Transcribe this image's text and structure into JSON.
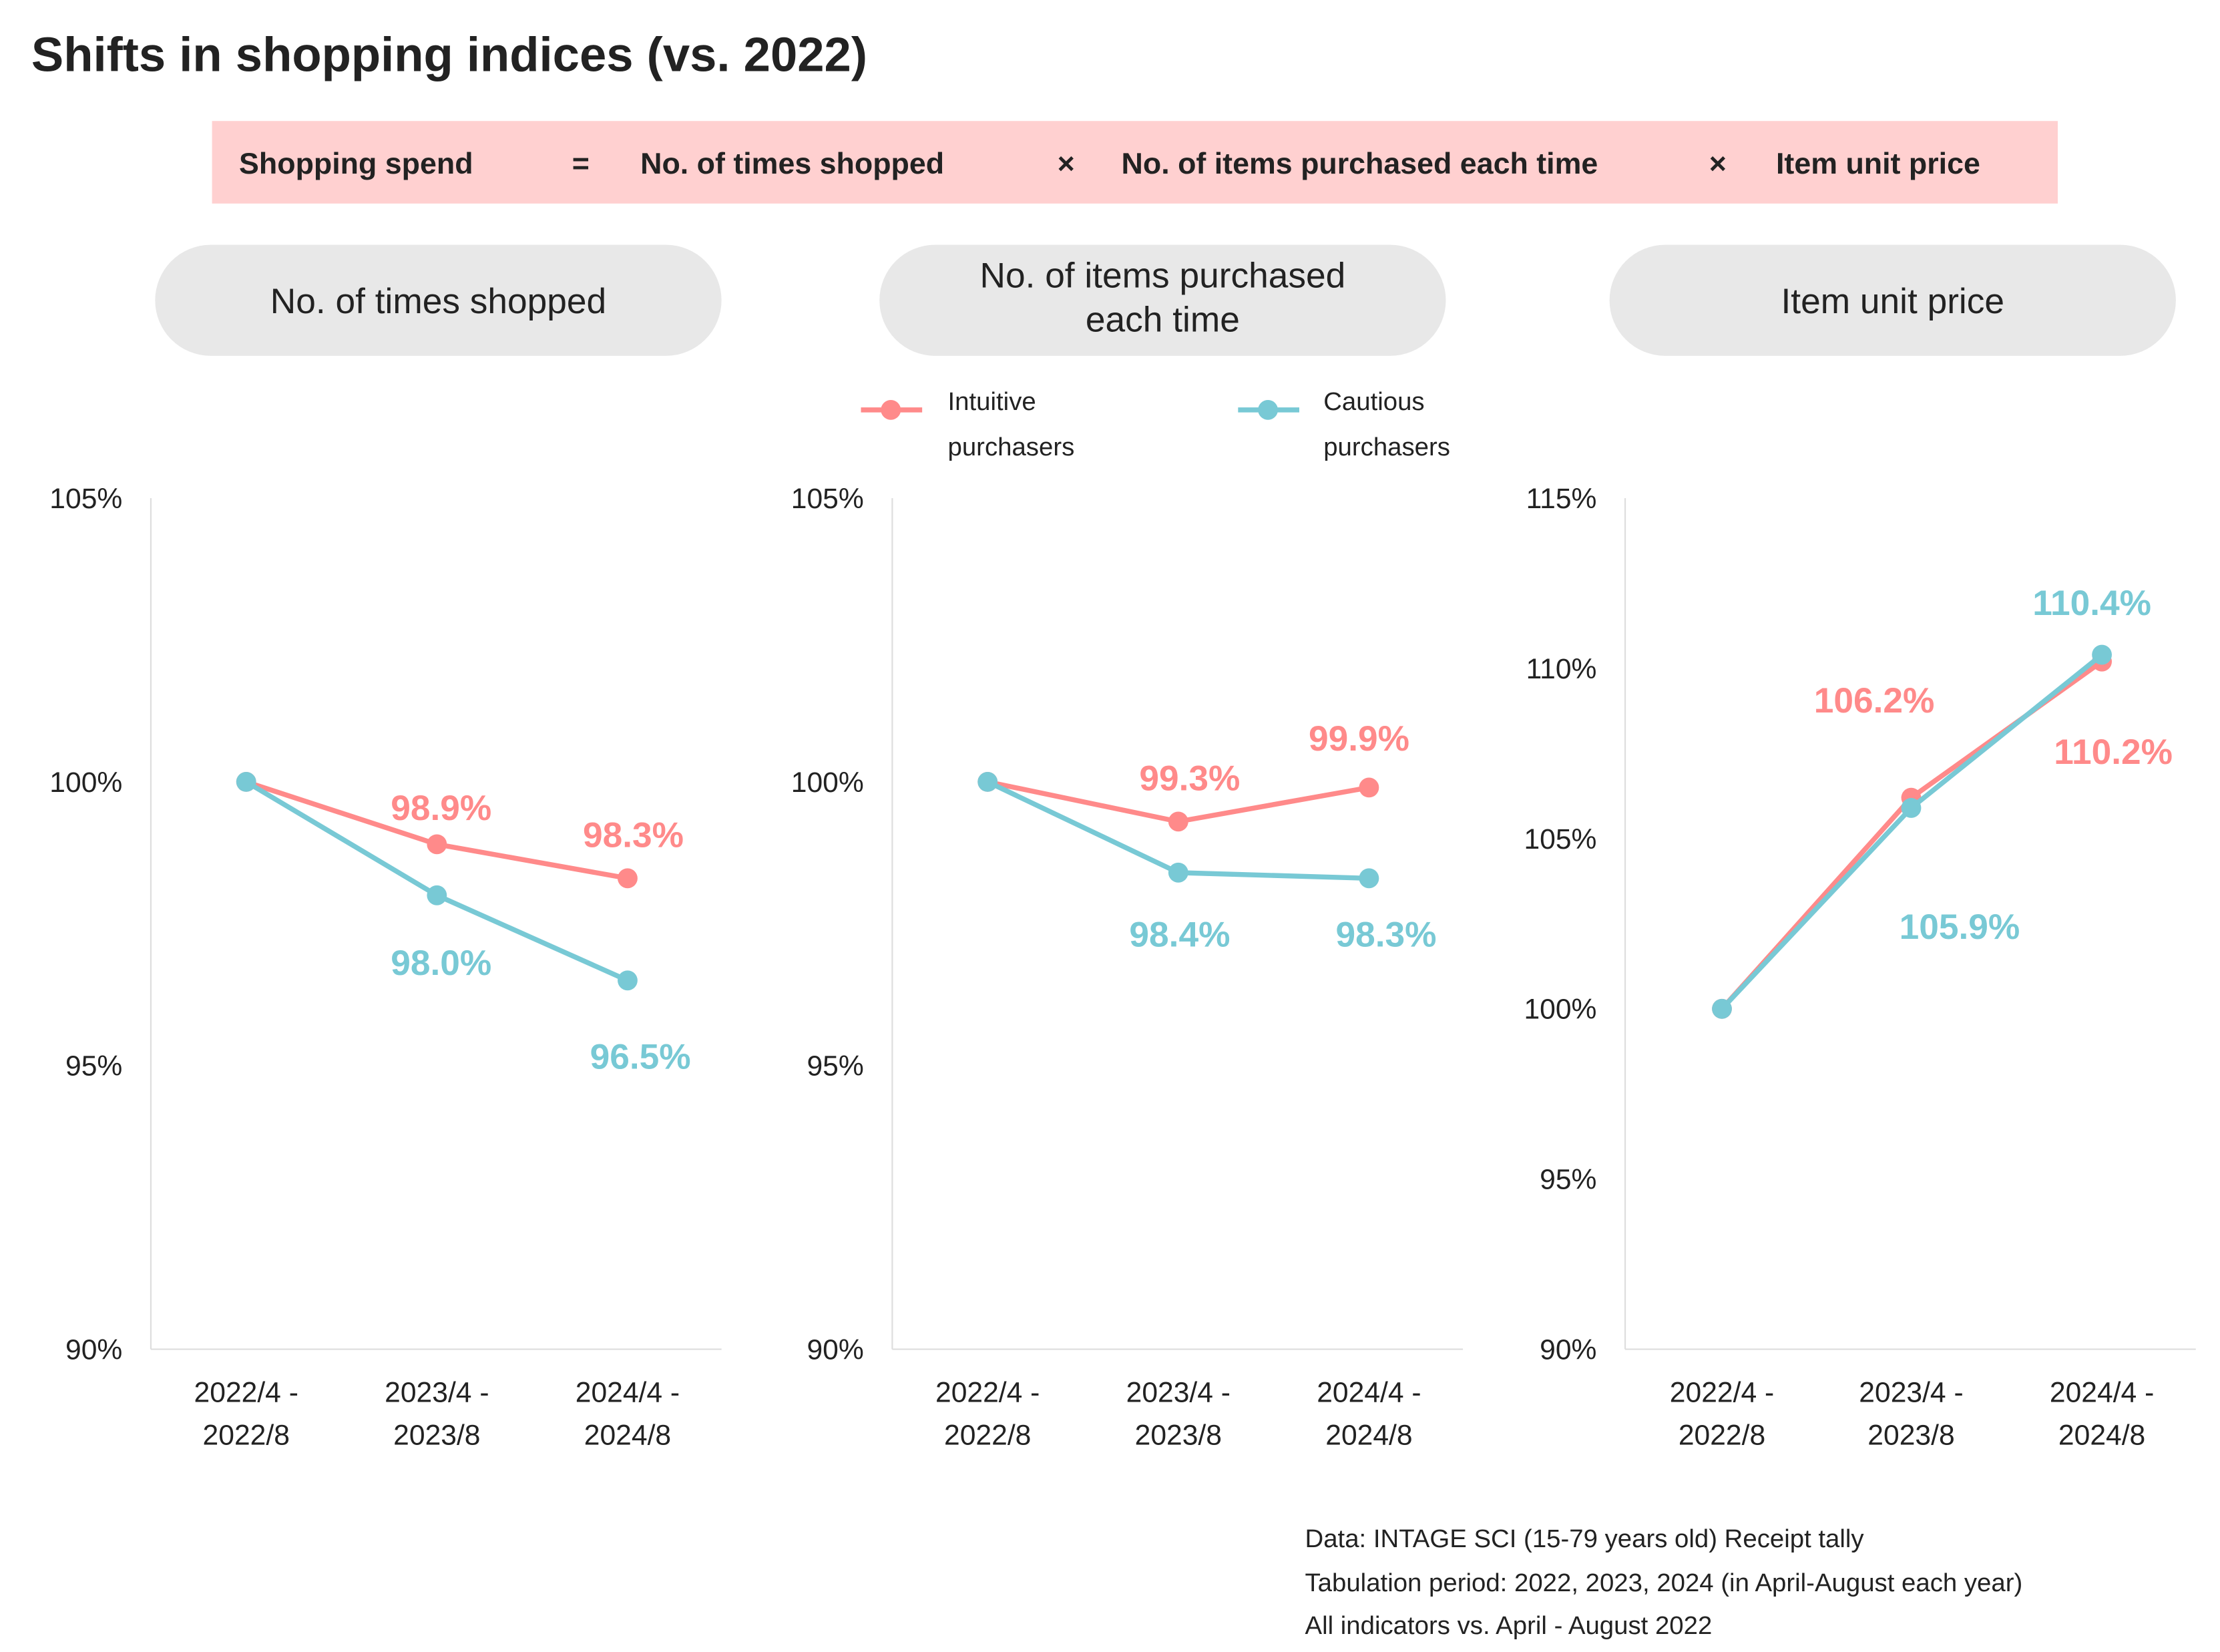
{
  "title": "Shifts in shopping indices (vs. 2022)",
  "formula": {
    "background": "#ffd0d0",
    "terms": [
      "Shopping spend",
      "=",
      "No. of times shopped",
      "×",
      "No. of items purchased each time",
      "×",
      "Item unit price"
    ]
  },
  "legend": [
    {
      "lines": [
        "Intuitive",
        "purchasers"
      ],
      "color": "#ff8a8a"
    },
    {
      "lines": [
        "Cautious",
        "purchasers"
      ],
      "color": "#78c9d5"
    }
  ],
  "chart_data": [
    {
      "type": "line",
      "title_lines": [
        "No. of times shopped"
      ],
      "categories": [
        [
          "2022/4 -",
          "2022/8"
        ],
        [
          "2023/4 -",
          "2023/8"
        ],
        [
          "2024/4 -",
          "2024/8"
        ]
      ],
      "ylim": [
        90,
        105
      ],
      "yticks": [
        "90%",
        "95%",
        "100%",
        "105%"
      ],
      "ytick_values": [
        90,
        95,
        100,
        105
      ],
      "series": [
        {
          "name": "Intuitive purchasers",
          "color": "#ff8a8a",
          "values": [
            100,
            98.9,
            98.3
          ],
          "labels": [
            "",
            "98.9%",
            "98.3%"
          ]
        },
        {
          "name": "Cautious purchasers",
          "color": "#78c9d5",
          "values": [
            100,
            98.0,
            96.5
          ],
          "labels": [
            "",
            "98.0%",
            "96.5%"
          ]
        }
      ]
    },
    {
      "type": "line",
      "title_lines": [
        "No. of items purchased",
        "each time"
      ],
      "categories": [
        [
          "2022/4 -",
          "2022/8"
        ],
        [
          "2023/4 -",
          "2023/8"
        ],
        [
          "2024/4 -",
          "2024/8"
        ]
      ],
      "ylim": [
        90,
        105
      ],
      "yticks": [
        "90%",
        "95%",
        "100%",
        "105%"
      ],
      "ytick_values": [
        90,
        95,
        100,
        105
      ],
      "series": [
        {
          "name": "Intuitive purchasers",
          "color": "#ff8a8a",
          "values": [
            100,
            99.3,
            99.9
          ],
          "labels": [
            "",
            "99.3%",
            "99.9%"
          ]
        },
        {
          "name": "Cautious purchasers",
          "color": "#78c9d5",
          "values": [
            100,
            98.4,
            98.3
          ],
          "labels": [
            "",
            "98.4%",
            "98.3%"
          ]
        }
      ]
    },
    {
      "type": "line",
      "title_lines": [
        "Item unit price"
      ],
      "categories": [
        [
          "2022/4 -",
          "2022/8"
        ],
        [
          "2023/4 -",
          "2023/8"
        ],
        [
          "2024/4 -",
          "2024/8"
        ]
      ],
      "ylim": [
        90,
        115
      ],
      "yticks": [
        "90%",
        "95%",
        "100%",
        "105%",
        "110%",
        "115%"
      ],
      "ytick_values": [
        90,
        95,
        100,
        105,
        110,
        115
      ],
      "series": [
        {
          "name": "Intuitive purchasers",
          "color": "#ff8a8a",
          "values": [
            100,
            106.2,
            110.2
          ],
          "labels": [
            "",
            "106.2%",
            "110.2%"
          ]
        },
        {
          "name": "Cautious purchasers",
          "color": "#78c9d5",
          "values": [
            100,
            105.9,
            110.4
          ],
          "labels": [
            "",
            "105.9%",
            "110.4%"
          ]
        }
      ]
    }
  ],
  "footer": [
    "Data: INTAGE SCI (15-79 years old) Receipt tally",
    "Tabulation period: 2022, 2023, 2024 (in April-August each year)",
    "All indicators vs. April - August 2022"
  ]
}
